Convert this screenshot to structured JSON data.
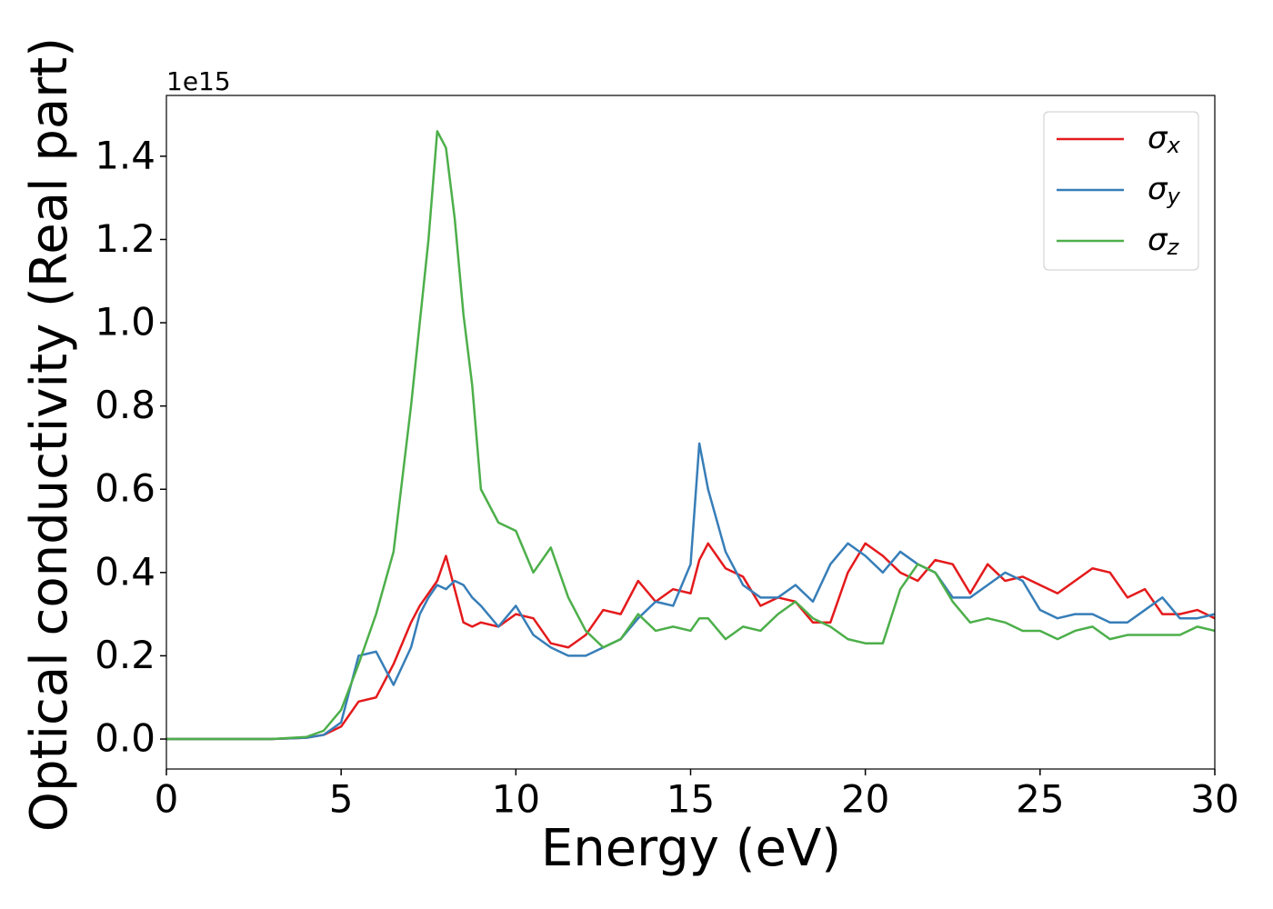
{
  "chart_data": {
    "type": "line",
    "x_label": "Energy (eV)",
    "y_label": "Optical conductivity (Real part)",
    "y_offset_label": "1e15",
    "x": [
      0,
      1,
      2,
      3,
      4,
      4.5,
      5,
      5.5,
      6,
      6.5,
      7,
      7.25,
      7.5,
      7.75,
      8,
      8.25,
      8.5,
      8.75,
      9,
      9.5,
      10,
      10.5,
      11,
      11.5,
      12,
      12.5,
      13,
      13.5,
      14,
      14.5,
      15,
      15.25,
      15.5,
      16,
      16.5,
      17,
      17.5,
      18,
      18.5,
      19,
      19.5,
      20,
      20.5,
      21,
      21.5,
      22,
      22.5,
      23,
      23.5,
      24,
      24.5,
      25,
      25.5,
      26,
      26.5,
      27,
      27.5,
      28,
      28.5,
      29,
      29.5,
      30
    ],
    "series": [
      {
        "name": "σx",
        "color": "#e41a1c",
        "values": [
          0,
          0,
          0,
          0,
          0.003,
          0.01,
          0.03,
          0.09,
          0.1,
          0.18,
          0.28,
          0.32,
          0.35,
          0.38,
          0.44,
          0.36,
          0.28,
          0.27,
          0.28,
          0.27,
          0.3,
          0.29,
          0.23,
          0.22,
          0.25,
          0.31,
          0.3,
          0.38,
          0.33,
          0.36,
          0.35,
          0.43,
          0.47,
          0.41,
          0.39,
          0.32,
          0.34,
          0.33,
          0.28,
          0.28,
          0.4,
          0.47,
          0.44,
          0.4,
          0.38,
          0.43,
          0.42,
          0.35,
          0.42,
          0.38,
          0.39,
          0.37,
          0.35,
          0.38,
          0.41,
          0.4,
          0.34,
          0.36,
          0.3,
          0.3,
          0.31,
          0.29
        ]
      },
      {
        "name": "σy",
        "color": "#377eb8",
        "values": [
          0,
          0,
          0,
          0,
          0.003,
          0.01,
          0.04,
          0.2,
          0.21,
          0.13,
          0.22,
          0.3,
          0.34,
          0.37,
          0.36,
          0.38,
          0.37,
          0.34,
          0.32,
          0.27,
          0.32,
          0.25,
          0.22,
          0.2,
          0.2,
          0.22,
          0.24,
          0.29,
          0.33,
          0.32,
          0.42,
          0.71,
          0.6,
          0.45,
          0.37,
          0.34,
          0.34,
          0.37,
          0.33,
          0.42,
          0.47,
          0.44,
          0.4,
          0.45,
          0.42,
          0.4,
          0.34,
          0.34,
          0.37,
          0.4,
          0.38,
          0.31,
          0.29,
          0.3,
          0.3,
          0.28,
          0.28,
          0.31,
          0.34,
          0.29,
          0.29,
          0.3
        ]
      },
      {
        "name": "σz",
        "color": "#4daf4a",
        "values": [
          0,
          0,
          0,
          0,
          0.005,
          0.02,
          0.07,
          0.18,
          0.3,
          0.45,
          0.8,
          1.0,
          1.2,
          1.46,
          1.42,
          1.25,
          1.02,
          0.85,
          0.6,
          0.52,
          0.5,
          0.4,
          0.46,
          0.34,
          0.26,
          0.22,
          0.24,
          0.3,
          0.26,
          0.27,
          0.26,
          0.29,
          0.29,
          0.24,
          0.27,
          0.26,
          0.3,
          0.33,
          0.29,
          0.27,
          0.24,
          0.23,
          0.23,
          0.36,
          0.42,
          0.4,
          0.33,
          0.28,
          0.29,
          0.28,
          0.26,
          0.26,
          0.24,
          0.26,
          0.27,
          0.24,
          0.25,
          0.25,
          0.25,
          0.25,
          0.27,
          0.26
        ]
      }
    ],
    "xlim": [
      0,
      30
    ],
    "xticks": [
      0,
      5,
      10,
      15,
      20,
      25,
      30
    ],
    "ylim": [
      -0.072,
      1.546
    ],
    "yticks": [
      {
        "value": 0,
        "label": "0.0"
      },
      0.2,
      0.4,
      0.6,
      0.8,
      {
        "value": 1,
        "label": "1.0"
      },
      1.2,
      1.4
    ],
    "legend": "upper right"
  }
}
